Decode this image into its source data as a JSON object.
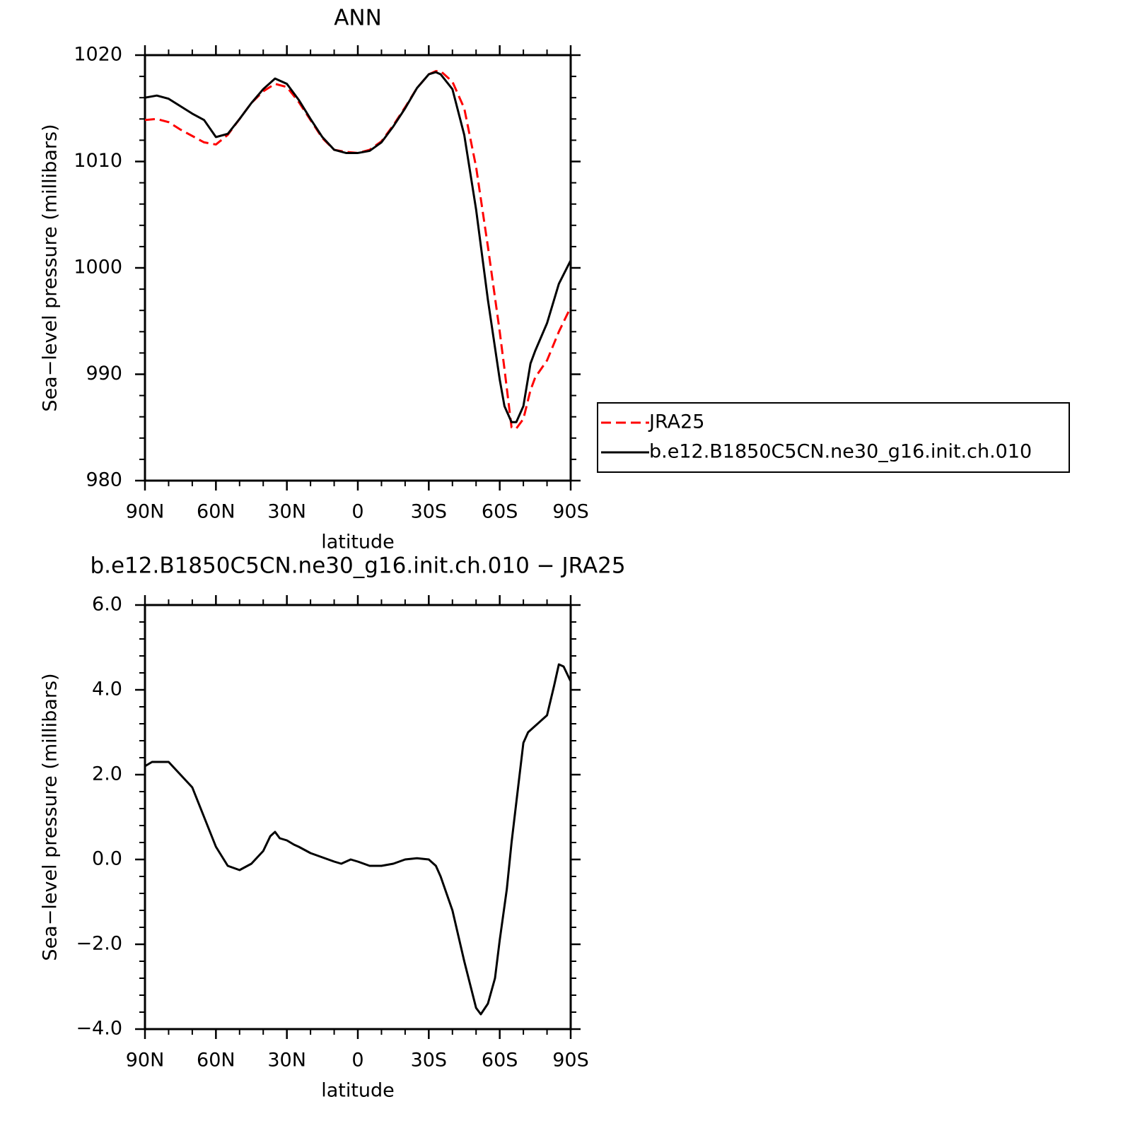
{
  "chart_data": [
    {
      "type": "line",
      "title": "ANN",
      "xlabel": "latitude",
      "ylabel": "Sea−level pressure (millibars)",
      "x": [
        90,
        85,
        80,
        75,
        70,
        65,
        60,
        55,
        50,
        45,
        40,
        35,
        30,
        25,
        20,
        15,
        10,
        5,
        0,
        -5,
        -10,
        -15,
        -20,
        -25,
        -30,
        -33,
        -35,
        -40,
        -45,
        -50,
        -55,
        -60,
        -62,
        -65,
        -67,
        -70,
        -73,
        -75,
        -80,
        -85,
        -90
      ],
      "series": [
        {
          "name": "JRA25",
          "color": "#ff0000",
          "line_style": "dashed",
          "values": [
            1013.9,
            1014.0,
            1013.7,
            1013.0,
            1012.4,
            1011.8,
            1011.6,
            1012.5,
            1014.0,
            1015.5,
            1016.6,
            1017.3,
            1017.0,
            1015.6,
            1013.9,
            1012.2,
            1011.1,
            1010.9,
            1010.8,
            1011.1,
            1011.9,
            1013.4,
            1015.1,
            1016.9,
            1018.2,
            1018.5,
            1018.5,
            1017.5,
            1015.0,
            1009.5,
            1002.0,
            994.0,
            990.5,
            985.0,
            984.9,
            985.8,
            988.5,
            989.7,
            991.3,
            994.0,
            996.3
          ]
        },
        {
          "name": "b.e12.B1850C5CN.ne30_g16.init.ch.010",
          "color": "#000000",
          "line_style": "solid",
          "values": [
            1016.0,
            1016.2,
            1015.9,
            1015.2,
            1014.5,
            1013.9,
            1012.3,
            1012.6,
            1014.0,
            1015.5,
            1016.8,
            1017.8,
            1017.3,
            1015.8,
            1014.0,
            1012.3,
            1011.1,
            1010.8,
            1010.8,
            1011.0,
            1011.8,
            1013.3,
            1015.0,
            1016.9,
            1018.2,
            1018.4,
            1018.2,
            1016.8,
            1012.5,
            1005.5,
            997.0,
            989.5,
            987.0,
            985.5,
            985.5,
            987.0,
            991.0,
            992.2,
            994.8,
            998.5,
            1000.7
          ]
        }
      ],
      "xlim": [
        90,
        -90
      ],
      "xticks": [
        {
          "value": 90,
          "label": "90N"
        },
        {
          "value": 60,
          "label": "60N"
        },
        {
          "value": 30,
          "label": "30N"
        },
        0,
        {
          "value": -30,
          "label": "30S"
        },
        {
          "value": -60,
          "label": "60S"
        },
        {
          "value": -90,
          "label": "90S"
        }
      ],
      "ylim": [
        980,
        1020
      ],
      "yticks": [
        980,
        990,
        1000,
        1010,
        1020
      ],
      "grid": false,
      "legend": "right"
    },
    {
      "type": "line",
      "title": "b.e12.B1850C5CN.ne30_g16.init.ch.010 − JRA25",
      "xlabel": "latitude",
      "ylabel": "Sea−level pressure (millibars)",
      "x": [
        90,
        87,
        80,
        75,
        70,
        65,
        60,
        55,
        50,
        45,
        40,
        37,
        35,
        33,
        30,
        27,
        25,
        20,
        15,
        10,
        7,
        5,
        3,
        0,
        -5,
        -10,
        -15,
        -20,
        -25,
        -30,
        -33,
        -35,
        -40,
        -45,
        -50,
        -52,
        -55,
        -58,
        -60,
        -63,
        -65,
        -70,
        -72,
        -75,
        -80,
        -83,
        -85,
        -87,
        -90
      ],
      "values": [
        2.2,
        2.3,
        2.3,
        2.0,
        1.7,
        1.0,
        0.3,
        -0.15,
        -0.25,
        -0.1,
        0.2,
        0.55,
        0.65,
        0.5,
        0.45,
        0.35,
        0.3,
        0.15,
        0.05,
        -0.05,
        -0.1,
        -0.05,
        0.0,
        -0.05,
        -0.15,
        -0.15,
        -0.1,
        0.0,
        0.03,
        0.0,
        -0.15,
        -0.4,
        -1.2,
        -2.4,
        -3.5,
        -3.65,
        -3.4,
        -2.8,
        -1.9,
        -0.7,
        0.4,
        2.75,
        3.0,
        3.15,
        3.4,
        4.1,
        4.6,
        4.55,
        4.2
      ],
      "color": "#000000",
      "xlim": [
        90,
        -90
      ],
      "xticks": [
        {
          "value": 90,
          "label": "90N"
        },
        {
          "value": 60,
          "label": "60N"
        },
        {
          "value": 30,
          "label": "30N"
        },
        0,
        {
          "value": -30,
          "label": "30S"
        },
        {
          "value": -60,
          "label": "60S"
        },
        {
          "value": -90,
          "label": "90S"
        }
      ],
      "ylim": [
        -4,
        6
      ],
      "yticks": [
        {
          "value": -4,
          "label": "−4.0"
        },
        {
          "value": -2,
          "label": "−2.0"
        },
        {
          "value": 0,
          "label": "0.0"
        },
        {
          "value": 2,
          "label": "2.0"
        },
        {
          "value": 4,
          "label": "4.0"
        },
        {
          "value": 6,
          "label": "6.0"
        }
      ],
      "grid": false
    }
  ]
}
